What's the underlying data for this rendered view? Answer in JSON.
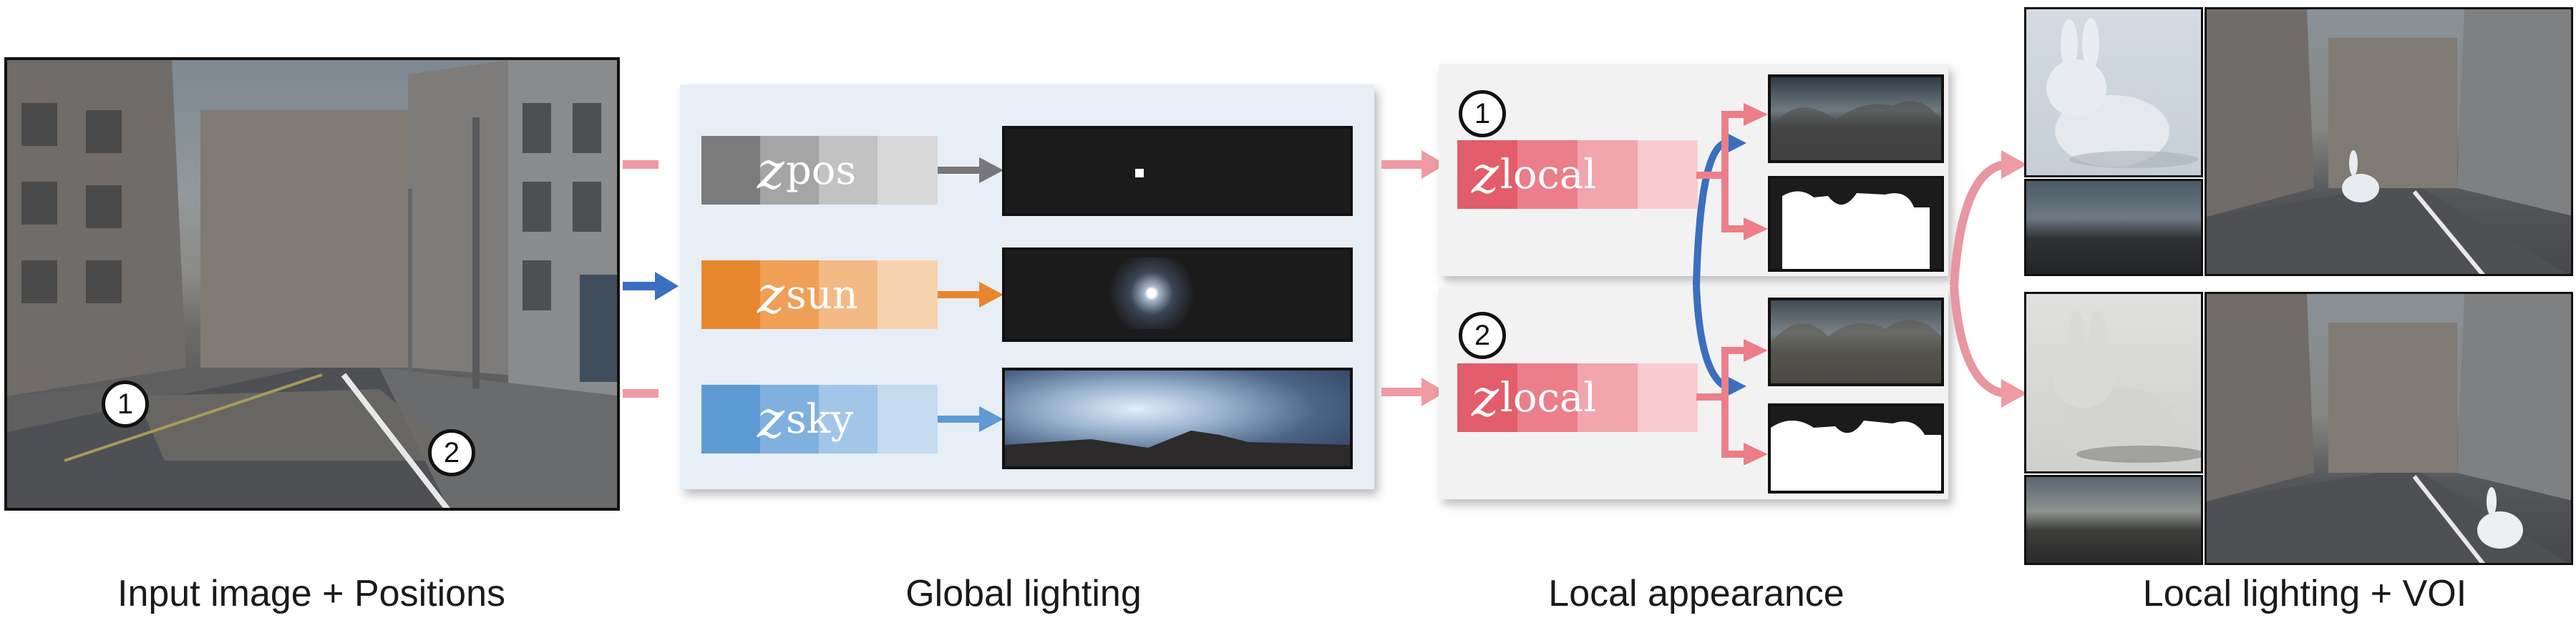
{
  "captions": {
    "input": "Input image + Positions",
    "global": "Global lighting",
    "local_appearance": "Local appearance",
    "local_lighting": "Local lighting + VOI"
  },
  "latents": {
    "pos": {
      "base": "z",
      "sub": "pos"
    },
    "sun": {
      "base": "z",
      "sub": "sun"
    },
    "sky": {
      "base": "z",
      "sub": "sky"
    },
    "local1": {
      "base": "z",
      "sub": "local"
    },
    "local2": {
      "base": "z",
      "sub": "local"
    }
  },
  "markers": {
    "one": "1",
    "two": "2"
  },
  "colors": {
    "pos": [
      "#7b7b7b",
      "#a5a5a5",
      "#c2c2c2",
      "#d8d8d8"
    ],
    "sun": [
      "#e8862e",
      "#ef9f56",
      "#f4ba85",
      "#f8d3b0"
    ],
    "sky": [
      "#5e9ad4",
      "#7fb0df",
      "#a3c6e8",
      "#c5dbf0"
    ],
    "local": [
      "#e35d6a",
      "#ec7e89",
      "#f3a5ad",
      "#f8ccd1"
    ],
    "arrow_pink": "#f09aa3",
    "arrow_blue": "#3a6fc0",
    "global_panel_bg": "#e7eef6"
  },
  "icons": {
    "position_marker": "numbered-circle",
    "arrow": "right-arrow"
  }
}
